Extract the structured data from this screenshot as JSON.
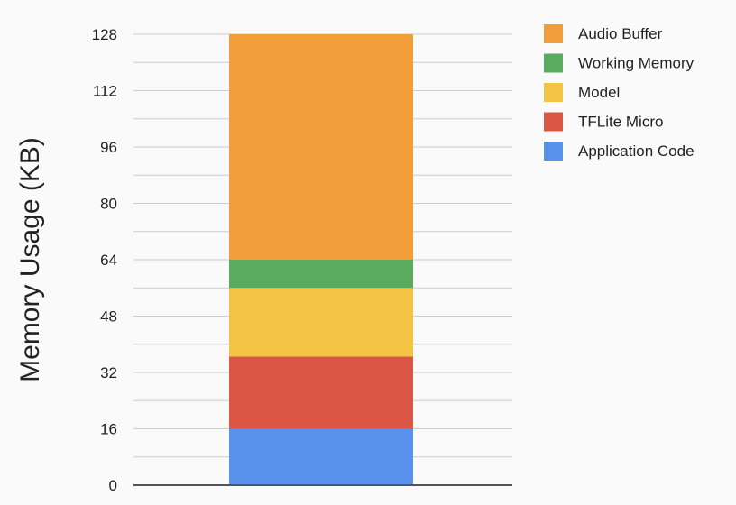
{
  "chart_data": {
    "type": "bar",
    "stacked": true,
    "categories": [
      ""
    ],
    "ylabel": "Memory Usage (KB)",
    "xlabel": "",
    "ylim": [
      0,
      128
    ],
    "yticks": [
      0,
      16,
      32,
      48,
      64,
      80,
      96,
      112,
      128
    ],
    "grid": "horizontal, every 8 KB",
    "legend_position": "top-right",
    "series": [
      {
        "name": "Application Code",
        "values": [
          16
        ],
        "color": "#5b91ee"
      },
      {
        "name": "TFLite Micro",
        "values": [
          20.5
        ],
        "color": "#dd5645"
      },
      {
        "name": "Model",
        "values": [
          19.5
        ],
        "color": "#f3c443"
      },
      {
        "name": "Working Memory",
        "values": [
          8
        ],
        "color": "#5aab5f"
      },
      {
        "name": "Audio Buffer",
        "values": [
          64
        ],
        "color": "#f09d3a"
      }
    ]
  }
}
